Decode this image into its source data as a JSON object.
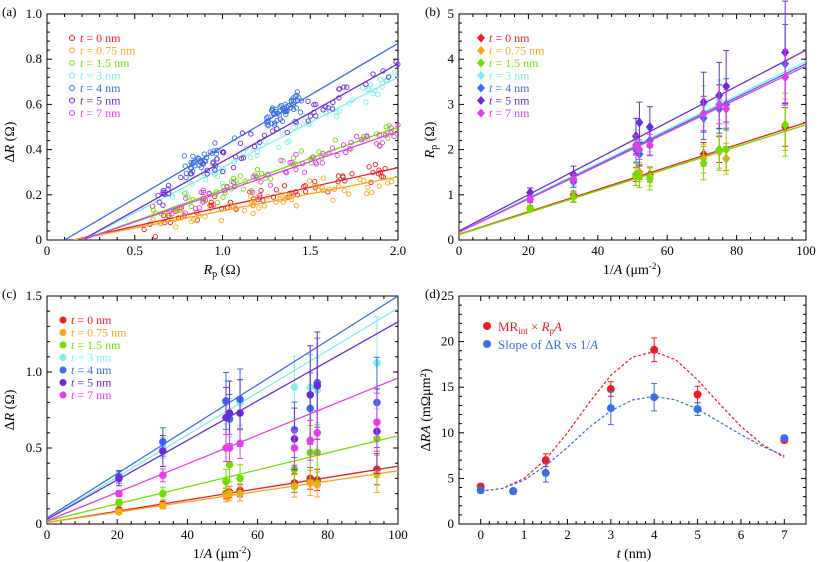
{
  "figure": {
    "legend_t_prefix": "t",
    "legend_unit": "nm",
    "thickness_labels": [
      "0",
      "0.75",
      "1.5",
      "3",
      "4",
      "5",
      "7"
    ],
    "series_colors": [
      "#ee1c25",
      "#f7a81b",
      "#6ee000",
      "#7ff0e6",
      "#3a6ee8",
      "#6a2cd9",
      "#e33fe6"
    ]
  },
  "chart_data": [
    {
      "panel": "(a)",
      "type": "scatter",
      "xlabel": "R_p (Ω)",
      "ylabel": "ΔR (Ω)",
      "xlim": [
        0,
        2.0
      ],
      "ylim": [
        0,
        1.0
      ],
      "xticks": [
        "0",
        "0.5",
        "1.0",
        "1.5",
        "2.0"
      ],
      "yticks": [
        "0",
        "0.2",
        "0.4",
        "0.6",
        "0.8",
        "1.0"
      ],
      "series": [
        {
          "name": "t = 0 nm",
          "fit_x": [
            0.15,
            2.0
          ],
          "fit_y": [
            0.0,
            0.32
          ],
          "x_range": [
            0.55,
            2.0
          ],
          "slope": 0.173,
          "intercept": -0.026
        },
        {
          "name": "t = 0.75 nm",
          "fit_x": [
            0.15,
            2.0
          ],
          "fit_y": [
            0.0,
            0.28
          ],
          "x_range": [
            0.6,
            2.0
          ],
          "slope": 0.151,
          "intercept": -0.023
        },
        {
          "name": "t = 1.5 nm",
          "fit_x": [
            0.2,
            2.0
          ],
          "fit_y": [
            0.0,
            0.5
          ],
          "x_range": [
            0.6,
            2.0
          ],
          "slope": 0.278,
          "intercept": -0.056
        },
        {
          "name": "t = 3 nm",
          "fit_x": [
            0.2,
            2.0
          ],
          "fit_y": [
            0.0,
            0.72
          ],
          "x_range": [
            0.7,
            2.0
          ],
          "slope": 0.4,
          "intercept": -0.08
        },
        {
          "name": "t = 4 nm",
          "fit_x": [
            0.1,
            2.0
          ],
          "fit_y": [
            0.0,
            0.87
          ],
          "x_range": [
            0.8,
            1.45
          ],
          "slope": 0.458,
          "intercept": -0.046
        },
        {
          "name": "t = 5 nm",
          "fit_x": [
            0.2,
            2.0
          ],
          "fit_y": [
            0.0,
            0.78
          ],
          "x_range": [
            0.6,
            2.0
          ],
          "slope": 0.433,
          "intercept": -0.087
        },
        {
          "name": "t = 7 nm",
          "fit_x": [
            0.2,
            2.0
          ],
          "fit_y": [
            0.0,
            0.48
          ],
          "x_range": [
            0.7,
            2.0
          ],
          "slope": 0.267,
          "intercept": -0.053
        }
      ]
    },
    {
      "panel": "(b)",
      "type": "scatter",
      "xlabel": "1/A (μm⁻²)",
      "ylabel": "R_p (Ω)",
      "xlim": [
        0,
        100
      ],
      "ylim": [
        0,
        5
      ],
      "xticks": [
        "0",
        "20",
        "40",
        "60",
        "80",
        "100"
      ],
      "yticks": [
        "0",
        "1",
        "2",
        "3",
        "4",
        "5"
      ],
      "x": [
        20.5,
        33,
        51,
        52,
        55,
        70.5,
        75,
        77,
        94
      ],
      "series": [
        {
          "name": "t = 0 nm",
          "y": [
            0.7,
            1.0,
            1.45,
            1.5,
            1.45,
            1.9,
            2.0,
            1.8,
            2.5
          ],
          "fit_y0": 0.13,
          "fit_y100": 2.6
        },
        {
          "name": "t = 0.75 nm",
          "y": [
            0.7,
            0.95,
            1.4,
            1.5,
            1.4,
            1.8,
            1.95,
            1.8,
            2.55
          ],
          "fit_y0": 0.12,
          "fit_y100": 2.55
        },
        {
          "name": "t = 1.5 nm",
          "y": [
            0.7,
            0.95,
            1.45,
            1.4,
            1.35,
            1.7,
            2.0,
            2.0,
            2.55
          ],
          "fit_y0": 0.12,
          "fit_y100": 2.55
        },
        {
          "name": "t = 3 nm",
          "y": [
            0.9,
            1.3,
            2.2,
            2.0,
            2.2,
            3.0,
            3.1,
            3.0,
            3.6
          ],
          "fit_y0": 0.18,
          "fit_y100": 3.95
        },
        {
          "name": "t = 4 nm",
          "y": [
            0.9,
            1.3,
            2.0,
            1.9,
            2.2,
            2.7,
            2.9,
            3.0,
            3.9
          ],
          "fit_y0": 0.17,
          "fit_y100": 3.9
        },
        {
          "name": "t = 5 nm",
          "y": [
            1.05,
            1.45,
            2.3,
            2.6,
            2.5,
            3.05,
            3.2,
            3.4,
            4.15
          ],
          "fit_y0": 0.2,
          "fit_y100": 4.2
        },
        {
          "name": "t = 7 nm",
          "y": [
            0.9,
            1.35,
            2.1,
            2.0,
            2.1,
            2.8,
            3.0,
            2.9,
            3.6
          ],
          "fit_y0": 0.17,
          "fit_y100": 3.85
        }
      ]
    },
    {
      "panel": "(c)",
      "type": "scatter",
      "xlabel": "1/A (μm⁻²)",
      "ylabel": "ΔR (Ω)",
      "xlim": [
        0,
        100
      ],
      "ylim": [
        0,
        1.5
      ],
      "xticks": [
        "0",
        "20",
        "40",
        "60",
        "80",
        "100"
      ],
      "yticks": [
        "0",
        "0.5",
        "1.0",
        "1.5"
      ],
      "x": [
        20.5,
        33,
        51,
        52,
        55,
        70.5,
        75,
        77,
        94
      ],
      "series": [
        {
          "name": "t = 0 nm",
          "y": [
            0.09,
            0.13,
            0.2,
            0.21,
            0.22,
            0.27,
            0.3,
            0.29,
            0.36
          ],
          "fit_y0": 0.01,
          "fit_y100": 0.38
        },
        {
          "name": "t = 0.75 nm",
          "y": [
            0.08,
            0.12,
            0.19,
            0.2,
            0.2,
            0.25,
            0.27,
            0.26,
            0.33
          ],
          "fit_y0": 0.01,
          "fit_y100": 0.35
        },
        {
          "name": "t = 1.5 nm",
          "y": [
            0.14,
            0.2,
            0.28,
            0.39,
            0.3,
            0.36,
            0.47,
            0.47,
            0.56
          ],
          "fit_y0": 0.02,
          "fit_y100": 0.58
        },
        {
          "name": "t = 3 nm",
          "y": [
            0.32,
            0.5,
            0.8,
            0.7,
            0.8,
            0.9,
            0.9,
            0.88,
            1.06
          ],
          "fit_y0": 0.03,
          "fit_y100": 1.42
        },
        {
          "name": "t = 4 nm",
          "y": [
            0.31,
            0.54,
            0.81,
            0.69,
            0.82,
            0.62,
            0.76,
            0.93,
            0.8
          ],
          "fit_y0": 0.04,
          "fit_y100": 1.5
        },
        {
          "name": "t = 5 nm",
          "y": [
            0.3,
            0.48,
            0.7,
            0.73,
            0.73,
            0.56,
            0.85,
            0.91,
            0.61
          ],
          "fit_y0": 0.03,
          "fit_y100": 1.33
        },
        {
          "name": "t = 7 nm",
          "y": [
            0.2,
            0.32,
            0.5,
            0.5,
            0.53,
            0.5,
            0.55,
            0.6,
            0.67
          ],
          "fit_y0": 0.02,
          "fit_y100": 0.96
        }
      ]
    },
    {
      "panel": "(d)",
      "type": "scatter",
      "xlabel": "t (nm)",
      "ylabel": "ΔRA (mΩμm²)",
      "xlim": [
        -0.5,
        7.5
      ],
      "ylim": [
        0,
        25
      ],
      "xticks": [
        "0",
        "1",
        "2",
        "3",
        "4",
        "5",
        "6",
        "7"
      ],
      "yticks": [
        "0",
        "5",
        "10",
        "15",
        "20",
        "25"
      ],
      "x": [
        0,
        0.75,
        1.5,
        3,
        4,
        5,
        7
      ],
      "series": [
        {
          "name": "MR_int × R_pA",
          "color": "#ee1c25",
          "y": [
            4.1,
            3.6,
            7.0,
            14.8,
            19.1,
            14.2,
            9.2
          ],
          "err": [
            0.3,
            0.3,
            0.7,
            0.8,
            1.3,
            0.9,
            0.3
          ]
        },
        {
          "name": "Slope of ΔR vs 1/A",
          "color": "#3a6ee8",
          "y": [
            3.7,
            3.6,
            5.6,
            12.7,
            13.9,
            12.6,
            9.4
          ],
          "err": [
            0.3,
            0.3,
            1.0,
            1.8,
            1.5,
            0.7,
            0.3
          ]
        }
      ],
      "curves": [
        {
          "name": "red-dashed",
          "color": "#ee1c25",
          "x": [
            0,
            0.5,
            1,
            1.5,
            2,
            2.5,
            3,
            3.5,
            4,
            4.5,
            5,
            5.5,
            6,
            6.5,
            7
          ],
          "y": [
            3.6,
            3.9,
            5.0,
            7.1,
            10.0,
            13.3,
            16.3,
            18.3,
            18.9,
            18.0,
            15.8,
            13.2,
            10.7,
            8.7,
            7.3
          ]
        },
        {
          "name": "blue-dashed",
          "color": "#3a6ee8",
          "x": [
            0,
            0.5,
            1,
            1.5,
            2,
            2.5,
            3,
            3.5,
            4,
            4.5,
            5,
            5.5,
            6,
            6.5,
            7
          ],
          "y": [
            3.6,
            3.9,
            4.8,
            6.4,
            8.4,
            10.6,
            12.4,
            13.6,
            14.0,
            13.6,
            12.6,
            11.2,
            9.8,
            8.5,
            7.5
          ]
        }
      ],
      "legend": [
        "MR",
        "int",
        " × R",
        "p",
        "A",
        "Slope of ΔR vs 1/",
        "A"
      ]
    }
  ],
  "text": {
    "panel_a": "(a)",
    "panel_b": "(b)",
    "panel_c": "(c)",
    "panel_d": "(d)",
    "delta": "Δ",
    "R": "R",
    "ohm": "(Ω)",
    "p": "p",
    "inv_area": "1/",
    "A": "A",
    "um2": "(μm",
    "minus2": "-2",
    "close": ")",
    "t": "t",
    "nm": "(nm)",
    "drA_unit": "(mΩμm²)"
  }
}
